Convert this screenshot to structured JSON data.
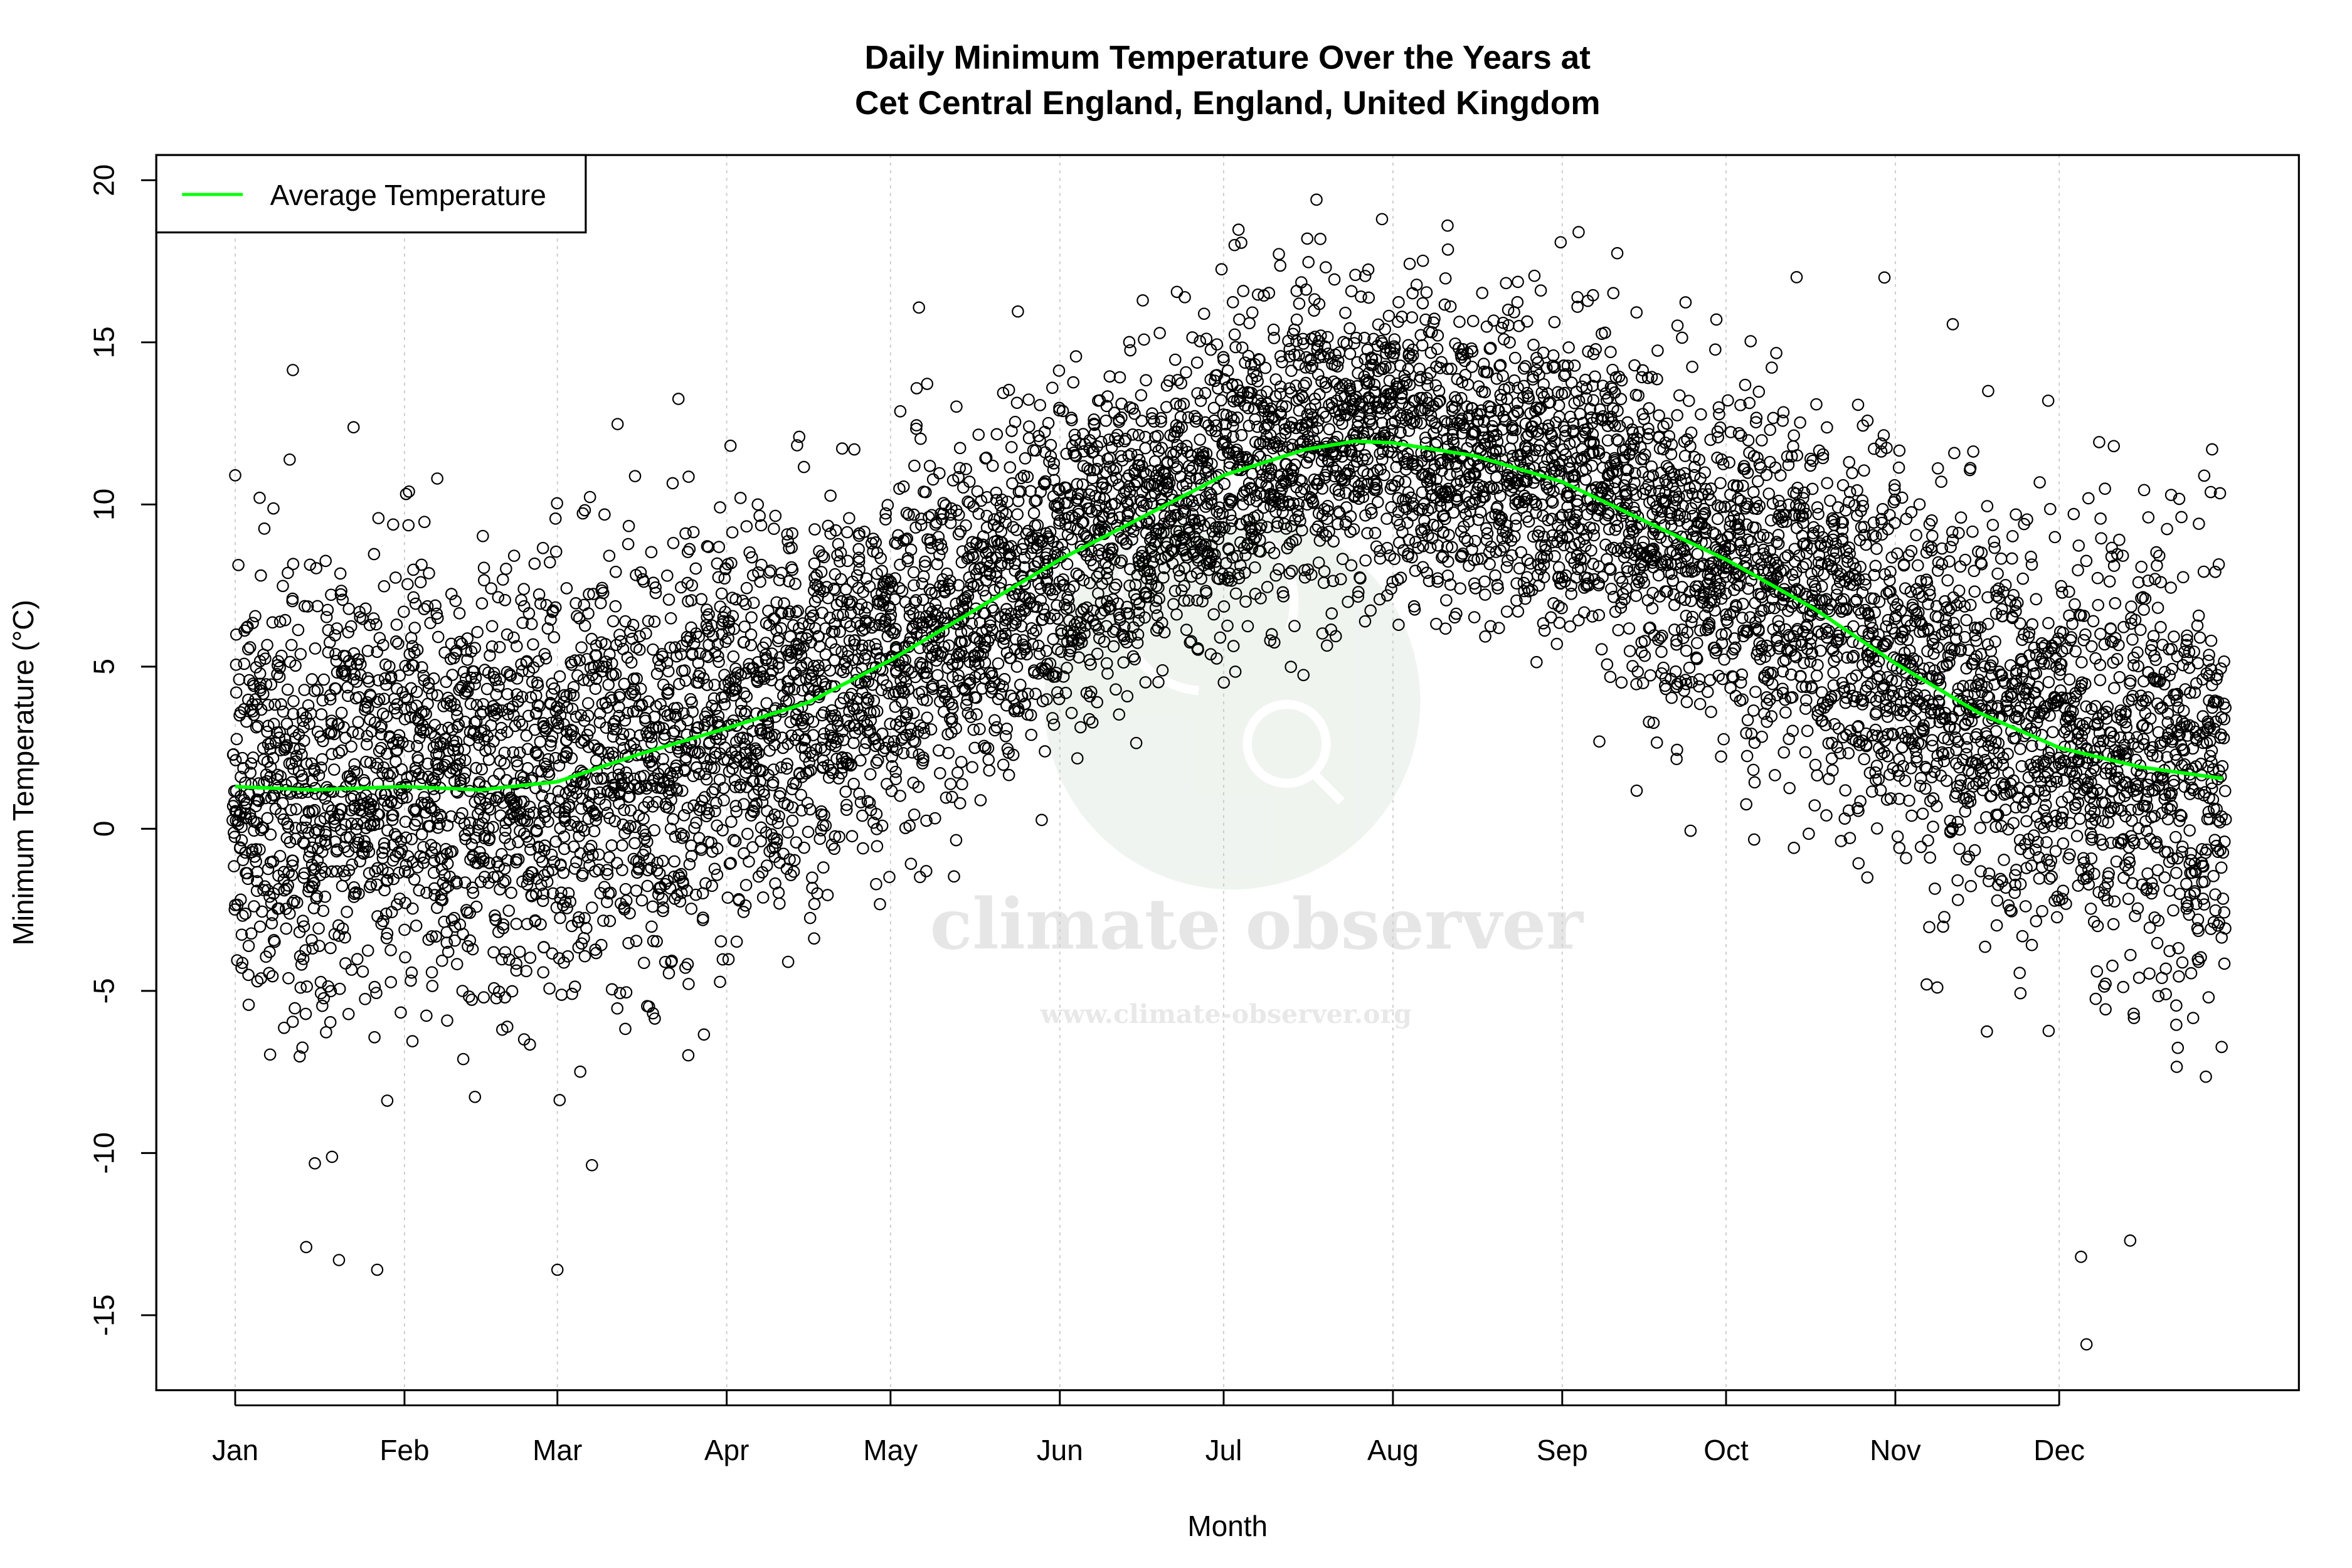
{
  "chart_data": {
    "type": "scatter",
    "title": [
      "Daily Minimum Temperature Over the Years at",
      "Cet Central England, England, United Kingdom"
    ],
    "xlabel": "Month",
    "ylabel": "Minimum Temperature (°C)",
    "x_unit": "day of year",
    "xlim": [
      1,
      365
    ],
    "ylim": [
      -16,
      20
    ],
    "x_ticks": [
      {
        "label": "Jan",
        "day": 1
      },
      {
        "label": "Feb",
        "day": 32
      },
      {
        "label": "Mar",
        "day": 60
      },
      {
        "label": "Apr",
        "day": 91
      },
      {
        "label": "May",
        "day": 121
      },
      {
        "label": "Jun",
        "day": 152
      },
      {
        "label": "Jul",
        "day": 182
      },
      {
        "label": "Aug",
        "day": 213
      },
      {
        "label": "Sep",
        "day": 244
      },
      {
        "label": "Oct",
        "day": 274
      },
      {
        "label": "Nov",
        "day": 305
      },
      {
        "label": "Dec",
        "day": 335
      }
    ],
    "y_ticks": [
      -15,
      -10,
      -5,
      0,
      5,
      10,
      15,
      20
    ],
    "grid": "vertical dotted at month ticks",
    "legend": {
      "placement": "top-left",
      "entries": [
        {
          "label": "Average Temperature",
          "color": "#00ff00"
        }
      ]
    },
    "series": [
      {
        "name": "Average Temperature",
        "kind": "line",
        "color": "#00ff00",
        "points": [
          [
            1,
            1.3
          ],
          [
            15,
            1.2
          ],
          [
            32,
            1.3
          ],
          [
            46,
            1.2
          ],
          [
            60,
            1.45
          ],
          [
            75,
            2.3
          ],
          [
            91,
            3.1
          ],
          [
            106,
            3.9
          ],
          [
            121,
            5.2
          ],
          [
            136,
            6.7
          ],
          [
            152,
            8.3
          ],
          [
            167,
            9.6
          ],
          [
            182,
            10.9
          ],
          [
            197,
            11.7
          ],
          [
            206,
            11.95
          ],
          [
            213,
            11.9
          ],
          [
            228,
            11.5
          ],
          [
            244,
            10.7
          ],
          [
            259,
            9.5
          ],
          [
            274,
            8.3
          ],
          [
            290,
            6.8
          ],
          [
            305,
            5.1
          ],
          [
            320,
            3.6
          ],
          [
            335,
            2.5
          ],
          [
            350,
            1.9
          ],
          [
            365,
            1.55
          ]
        ]
      },
      {
        "name": "Daily observations",
        "kind": "scatter",
        "color": "#000000",
        "marker": "open circle",
        "spread_sd_winter": 3.4,
        "spread_sd_summer": 2.3,
        "notable_points": [
          [
            199,
            19.4
          ],
          [
            211,
            18.8
          ],
          [
            223,
            18.6
          ],
          [
            247,
            18.4
          ],
          [
            184,
            18.0
          ],
          [
            340,
            -15.9
          ],
          [
            27,
            -13.6
          ],
          [
            60,
            -13.6
          ],
          [
            20,
            -13.3
          ],
          [
            339,
            -13.2
          ],
          [
            348,
            -12.7
          ],
          [
            14,
            -12.9
          ],
          [
            1,
            10.9
          ],
          [
            38,
            10.8
          ],
          [
            363,
            11.7
          ],
          [
            303,
            17.0
          ],
          [
            322,
            13.5
          ],
          [
            345,
            11.8
          ]
        ]
      }
    ]
  },
  "watermark": {
    "name": "climate observer",
    "url": "www.climate-observer.org",
    "color": "#e8eee8"
  }
}
